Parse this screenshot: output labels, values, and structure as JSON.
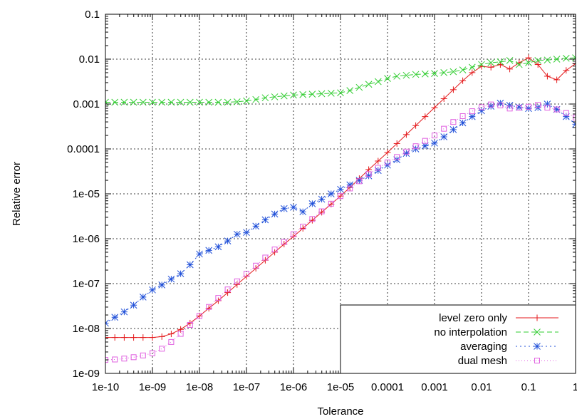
{
  "chart_data": {
    "type": "line",
    "xlabel": "Tolerance",
    "ylabel": "Relative error",
    "xscale": "log",
    "yscale": "log",
    "xlim": [
      1e-10,
      1
    ],
    "ylim": [
      1e-09,
      0.1
    ],
    "grid": true,
    "legend_position": "bottom-right",
    "x_tick_labels": [
      "1e-10",
      "1e-09",
      "1e-08",
      "1e-07",
      "1e-06",
      "1e-05",
      "0.0001",
      "0.001",
      "0.01",
      "0.1",
      "1"
    ],
    "y_tick_labels": [
      "1e-09",
      "1e-08",
      "1e-07",
      "1e-06",
      "1e-05",
      "0.0001",
      "0.001",
      "0.01",
      "0.1"
    ],
    "x_exponents": [
      -10.0,
      -9.8,
      -9.6,
      -9.4,
      -9.2,
      -9.0,
      -8.8,
      -8.6,
      -8.4,
      -8.2,
      -8.0,
      -7.8,
      -7.6,
      -7.4,
      -7.2,
      -7.0,
      -6.8,
      -6.6,
      -6.4,
      -6.2,
      -6.0,
      -5.8,
      -5.6,
      -5.4,
      -5.2,
      -5.0,
      -4.8,
      -4.6,
      -4.4,
      -4.2,
      -4.0,
      -3.8,
      -3.6,
      -3.4,
      -3.2,
      -3.0,
      -2.8,
      -2.6,
      -2.4,
      -2.2,
      -2.0,
      -1.8,
      -1.6,
      -1.4,
      -1.2,
      -1.0,
      -0.8,
      -0.6,
      -0.4,
      -0.2,
      0.0
    ],
    "series": [
      {
        "name": "level zero only",
        "color": "#e41a1c",
        "marker": "plus",
        "dash": "",
        "log10_values": [
          -8.2,
          -8.2,
          -8.2,
          -8.2,
          -8.2,
          -8.2,
          -8.18,
          -8.12,
          -8.02,
          -7.88,
          -7.72,
          -7.55,
          -7.38,
          -7.2,
          -7.02,
          -6.84,
          -6.66,
          -6.48,
          -6.3,
          -6.12,
          -5.95,
          -5.77,
          -5.59,
          -5.41,
          -5.23,
          -5.05,
          -4.86,
          -4.66,
          -4.46,
          -4.27,
          -4.08,
          -3.88,
          -3.68,
          -3.48,
          -3.28,
          -3.08,
          -2.88,
          -2.68,
          -2.48,
          -2.3,
          -2.16,
          -2.18,
          -2.12,
          -2.22,
          -2.08,
          -1.97,
          -2.12,
          -2.38,
          -2.46,
          -2.25,
          -2.1
        ]
      },
      {
        "name": "no interpolation",
        "color": "#32cd32",
        "marker": "cross",
        "dash": "7,4",
        "log10_values": [
          -2.96,
          -2.96,
          -2.96,
          -2.96,
          -2.96,
          -2.96,
          -2.96,
          -2.96,
          -2.96,
          -2.96,
          -2.96,
          -2.96,
          -2.96,
          -2.96,
          -2.95,
          -2.93,
          -2.9,
          -2.86,
          -2.84,
          -2.82,
          -2.8,
          -2.79,
          -2.78,
          -2.77,
          -2.76,
          -2.75,
          -2.7,
          -2.63,
          -2.56,
          -2.5,
          -2.43,
          -2.38,
          -2.36,
          -2.34,
          -2.33,
          -2.32,
          -2.3,
          -2.28,
          -2.24,
          -2.18,
          -2.12,
          -2.08,
          -2.06,
          -2.03,
          -2.12,
          -2.08,
          -2.03,
          -2.02,
          -2.0,
          -1.98,
          -1.97
        ]
      },
      {
        "name": "averaging",
        "color": "#1f4fd8",
        "marker": "star",
        "dash": "2,4",
        "log10_values": [
          -7.88,
          -7.75,
          -7.63,
          -7.48,
          -7.3,
          -7.14,
          -7.03,
          -6.9,
          -6.78,
          -6.58,
          -6.34,
          -6.26,
          -6.18,
          -6.05,
          -5.9,
          -5.86,
          -5.72,
          -5.58,
          -5.45,
          -5.33,
          -5.3,
          -5.4,
          -5.22,
          -5.12,
          -5.0,
          -4.9,
          -4.8,
          -4.7,
          -4.6,
          -4.48,
          -4.36,
          -4.24,
          -4.1,
          -4.0,
          -3.93,
          -3.87,
          -3.73,
          -3.57,
          -3.42,
          -3.28,
          -3.15,
          -3.05,
          -2.98,
          -3.03,
          -3.07,
          -3.1,
          -3.08,
          -3.0,
          -3.12,
          -3.28,
          -3.45
        ]
      },
      {
        "name": "dual mesh",
        "color": "#e060e0",
        "marker": "square",
        "dash": "1,3",
        "log10_values": [
          -8.7,
          -8.69,
          -8.67,
          -8.64,
          -8.6,
          -8.55,
          -8.45,
          -8.3,
          -8.12,
          -7.92,
          -7.72,
          -7.52,
          -7.32,
          -7.13,
          -6.95,
          -6.78,
          -6.6,
          -6.42,
          -6.24,
          -6.07,
          -5.9,
          -5.73,
          -5.56,
          -5.39,
          -5.22,
          -5.05,
          -4.88,
          -4.72,
          -4.56,
          -4.42,
          -4.3,
          -4.18,
          -4.06,
          -3.94,
          -3.82,
          -3.7,
          -3.55,
          -3.4,
          -3.27,
          -3.16,
          -3.07,
          -3.01,
          -3.03,
          -3.1,
          -3.08,
          -3.06,
          -3.02,
          -3.08,
          -3.12,
          -3.2,
          -3.3
        ]
      }
    ]
  }
}
